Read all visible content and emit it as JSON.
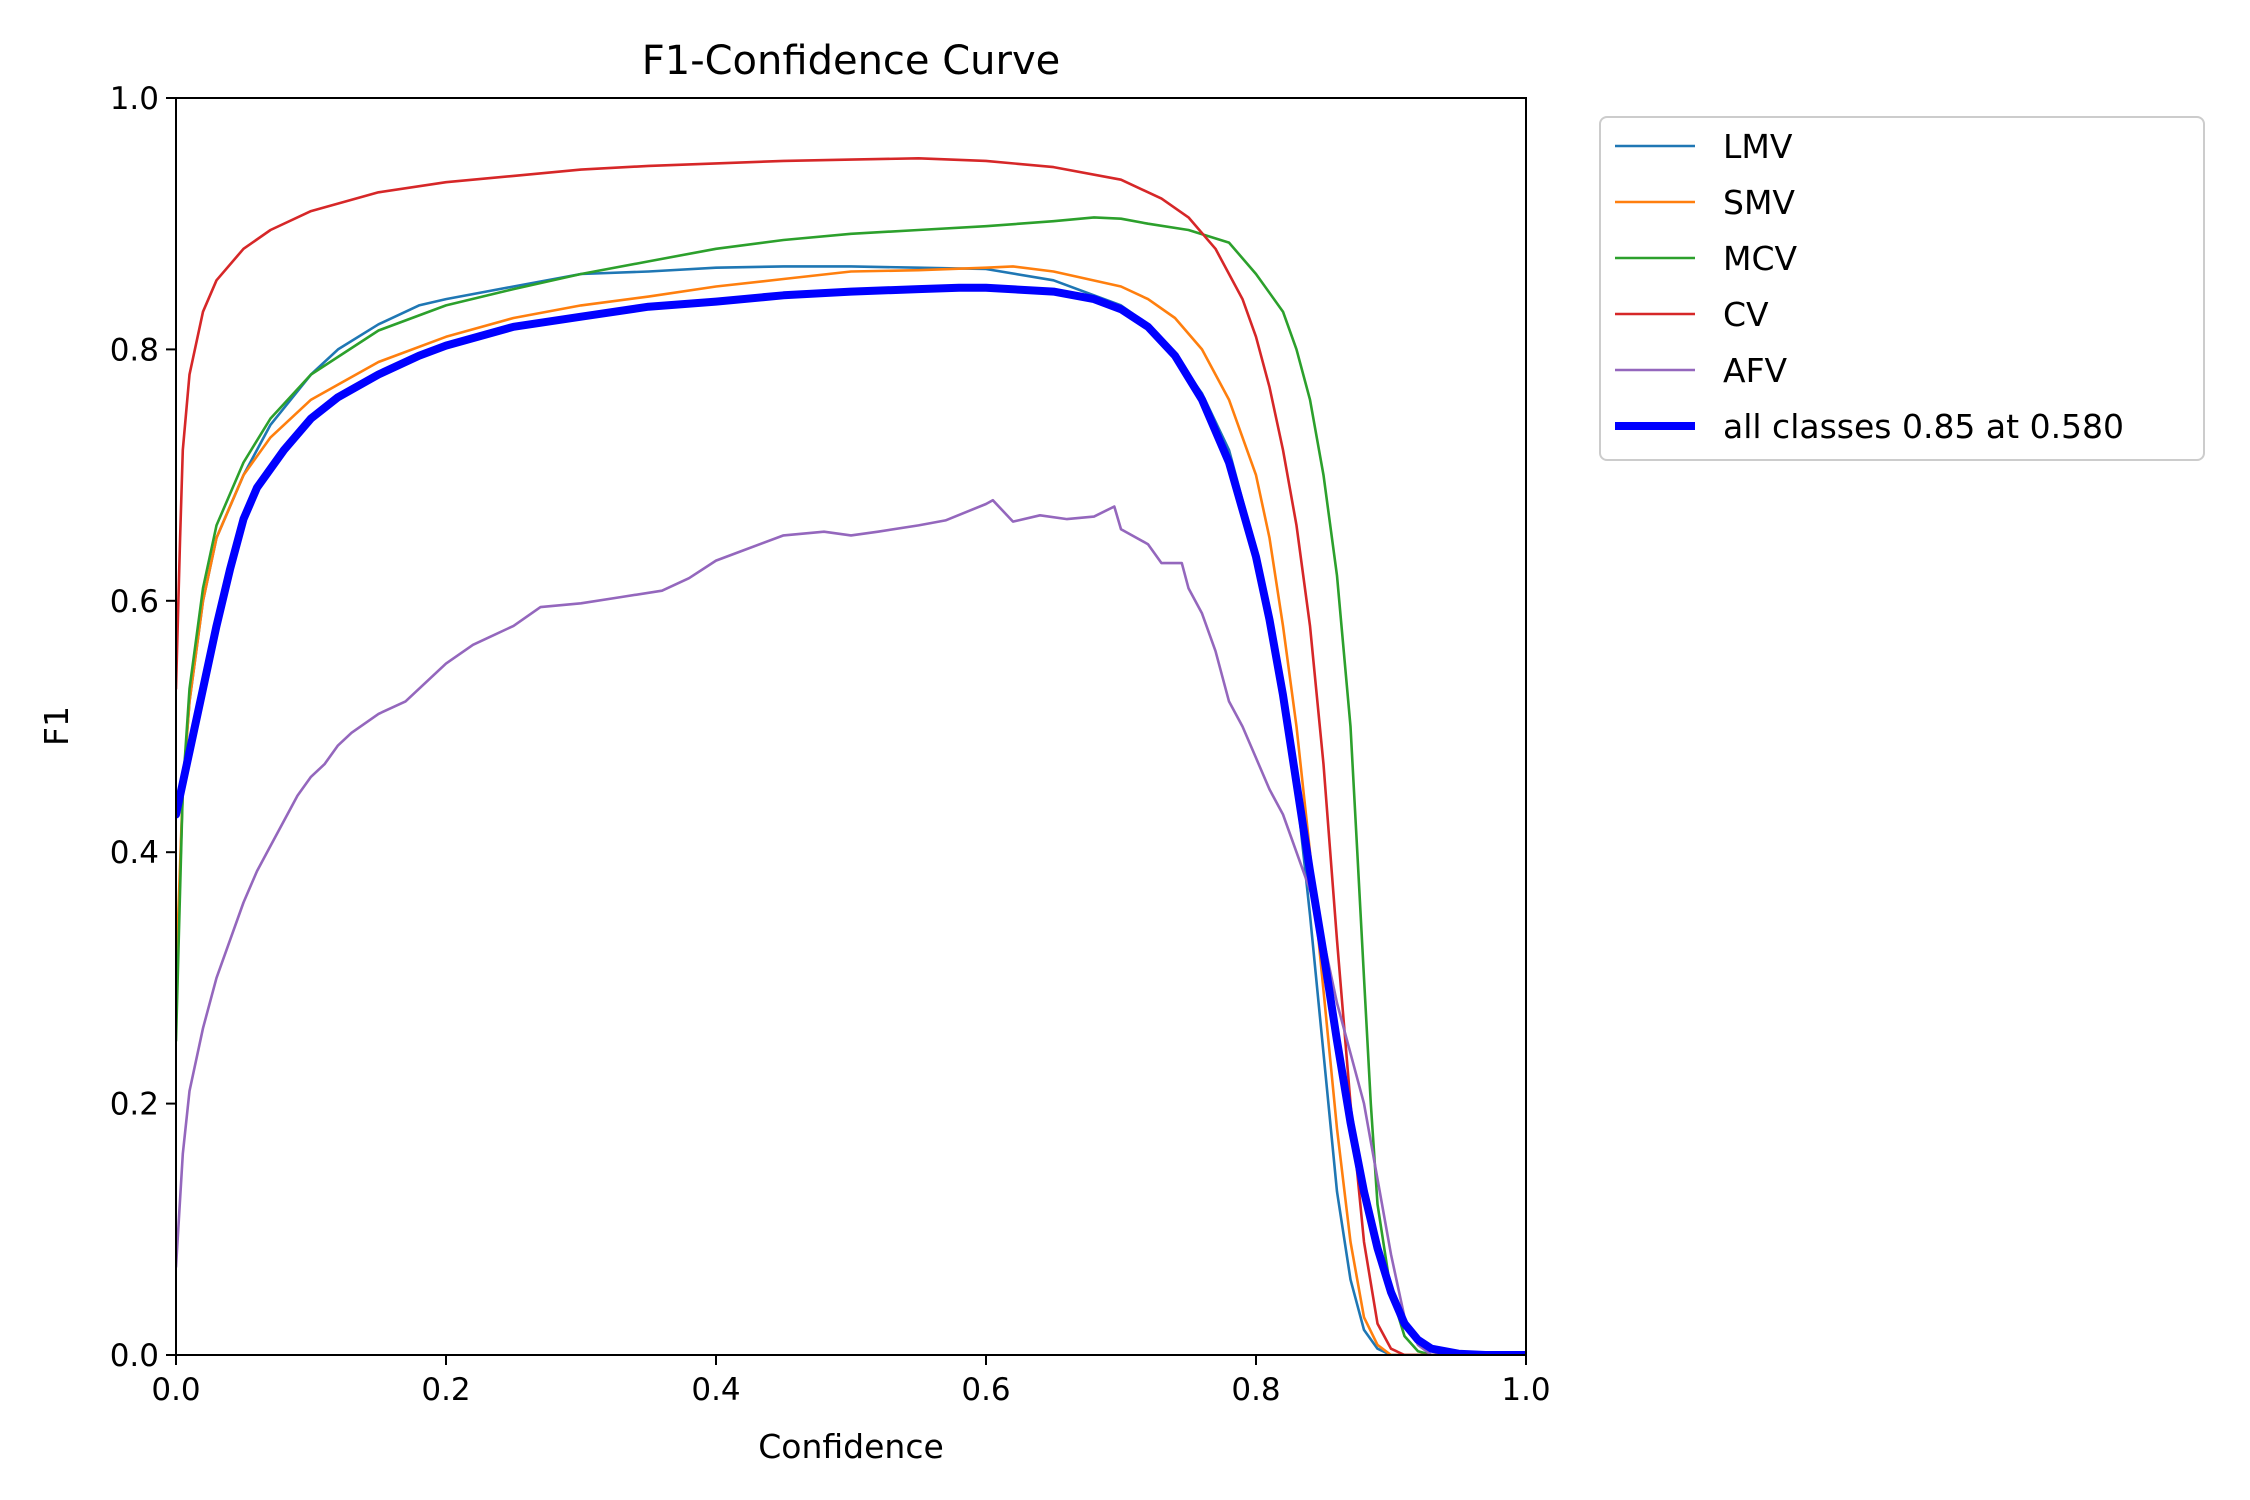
{
  "chart_data": {
    "type": "line",
    "title": "F1-Confidence Curve",
    "xlabel": "Confidence",
    "ylabel": "F1",
    "xlim": [
      0.0,
      1.0
    ],
    "ylim": [
      0.0,
      1.0
    ],
    "xticks": [
      "0.0",
      "0.2",
      "0.4",
      "0.6",
      "0.8",
      "1.0"
    ],
    "yticks": [
      "0.0",
      "0.2",
      "0.4",
      "0.6",
      "0.8",
      "1.0"
    ],
    "grid": false,
    "legend_position": "outside-top-right",
    "series": [
      {
        "name": "LMV",
        "color": "#1f77b4",
        "width": "thin",
        "points": [
          [
            0.0,
            0.28
          ],
          [
            0.005,
            0.45
          ],
          [
            0.01,
            0.52
          ],
          [
            0.02,
            0.6
          ],
          [
            0.03,
            0.65
          ],
          [
            0.05,
            0.7
          ],
          [
            0.07,
            0.74
          ],
          [
            0.1,
            0.78
          ],
          [
            0.12,
            0.8
          ],
          [
            0.15,
            0.82
          ],
          [
            0.18,
            0.835
          ],
          [
            0.2,
            0.84
          ],
          [
            0.25,
            0.85
          ],
          [
            0.3,
            0.86
          ],
          [
            0.35,
            0.862
          ],
          [
            0.4,
            0.865
          ],
          [
            0.45,
            0.866
          ],
          [
            0.5,
            0.866
          ],
          [
            0.55,
            0.865
          ],
          [
            0.6,
            0.864
          ],
          [
            0.65,
            0.855
          ],
          [
            0.7,
            0.835
          ],
          [
            0.72,
            0.82
          ],
          [
            0.74,
            0.795
          ],
          [
            0.76,
            0.765
          ],
          [
            0.78,
            0.72
          ],
          [
            0.8,
            0.64
          ],
          [
            0.81,
            0.59
          ],
          [
            0.82,
            0.52
          ],
          [
            0.83,
            0.45
          ],
          [
            0.84,
            0.35
          ],
          [
            0.85,
            0.24
          ],
          [
            0.86,
            0.13
          ],
          [
            0.87,
            0.06
          ],
          [
            0.88,
            0.02
          ],
          [
            0.89,
            0.005
          ],
          [
            0.9,
            0.0
          ],
          [
            1.0,
            0.0
          ]
        ]
      },
      {
        "name": "SMV",
        "color": "#ff7f0e",
        "width": "thin",
        "points": [
          [
            0.0,
            0.3
          ],
          [
            0.005,
            0.45
          ],
          [
            0.01,
            0.52
          ],
          [
            0.02,
            0.6
          ],
          [
            0.03,
            0.65
          ],
          [
            0.05,
            0.7
          ],
          [
            0.07,
            0.73
          ],
          [
            0.1,
            0.76
          ],
          [
            0.15,
            0.79
          ],
          [
            0.2,
            0.81
          ],
          [
            0.25,
            0.825
          ],
          [
            0.3,
            0.835
          ],
          [
            0.35,
            0.842
          ],
          [
            0.4,
            0.85
          ],
          [
            0.45,
            0.856
          ],
          [
            0.5,
            0.862
          ],
          [
            0.55,
            0.863
          ],
          [
            0.6,
            0.865
          ],
          [
            0.62,
            0.866
          ],
          [
            0.65,
            0.862
          ],
          [
            0.7,
            0.85
          ],
          [
            0.72,
            0.84
          ],
          [
            0.74,
            0.825
          ],
          [
            0.76,
            0.8
          ],
          [
            0.78,
            0.76
          ],
          [
            0.8,
            0.7
          ],
          [
            0.81,
            0.65
          ],
          [
            0.82,
            0.58
          ],
          [
            0.83,
            0.5
          ],
          [
            0.84,
            0.4
          ],
          [
            0.85,
            0.29
          ],
          [
            0.86,
            0.18
          ],
          [
            0.87,
            0.09
          ],
          [
            0.88,
            0.03
          ],
          [
            0.89,
            0.008
          ],
          [
            0.9,
            0.0
          ],
          [
            1.0,
            0.0
          ]
        ]
      },
      {
        "name": "MCV",
        "color": "#2ca02c",
        "width": "thin",
        "points": [
          [
            0.0,
            0.25
          ],
          [
            0.005,
            0.45
          ],
          [
            0.01,
            0.53
          ],
          [
            0.02,
            0.61
          ],
          [
            0.03,
            0.66
          ],
          [
            0.05,
            0.71
          ],
          [
            0.07,
            0.745
          ],
          [
            0.1,
            0.78
          ],
          [
            0.15,
            0.815
          ],
          [
            0.2,
            0.835
          ],
          [
            0.25,
            0.848
          ],
          [
            0.3,
            0.86
          ],
          [
            0.35,
            0.87
          ],
          [
            0.4,
            0.88
          ],
          [
            0.45,
            0.887
          ],
          [
            0.5,
            0.892
          ],
          [
            0.55,
            0.895
          ],
          [
            0.6,
            0.898
          ],
          [
            0.65,
            0.902
          ],
          [
            0.68,
            0.905
          ],
          [
            0.7,
            0.904
          ],
          [
            0.72,
            0.9
          ],
          [
            0.75,
            0.895
          ],
          [
            0.78,
            0.885
          ],
          [
            0.8,
            0.86
          ],
          [
            0.82,
            0.83
          ],
          [
            0.83,
            0.8
          ],
          [
            0.84,
            0.76
          ],
          [
            0.85,
            0.7
          ],
          [
            0.86,
            0.62
          ],
          [
            0.87,
            0.5
          ],
          [
            0.875,
            0.4
          ],
          [
            0.88,
            0.3
          ],
          [
            0.885,
            0.2
          ],
          [
            0.89,
            0.12
          ],
          [
            0.9,
            0.05
          ],
          [
            0.91,
            0.015
          ],
          [
            0.92,
            0.003
          ],
          [
            0.93,
            0.0
          ],
          [
            1.0,
            0.0
          ]
        ]
      },
      {
        "name": "CV",
        "color": "#d62728",
        "width": "thin",
        "points": [
          [
            0.0,
            0.53
          ],
          [
            0.003,
            0.65
          ],
          [
            0.005,
            0.72
          ],
          [
            0.01,
            0.78
          ],
          [
            0.02,
            0.83
          ],
          [
            0.03,
            0.855
          ],
          [
            0.05,
            0.88
          ],
          [
            0.07,
            0.895
          ],
          [
            0.1,
            0.91
          ],
          [
            0.15,
            0.925
          ],
          [
            0.2,
            0.933
          ],
          [
            0.25,
            0.938
          ],
          [
            0.3,
            0.943
          ],
          [
            0.35,
            0.946
          ],
          [
            0.4,
            0.948
          ],
          [
            0.45,
            0.95
          ],
          [
            0.5,
            0.951
          ],
          [
            0.55,
            0.952
          ],
          [
            0.6,
            0.95
          ],
          [
            0.65,
            0.945
          ],
          [
            0.7,
            0.935
          ],
          [
            0.73,
            0.92
          ],
          [
            0.75,
            0.905
          ],
          [
            0.77,
            0.88
          ],
          [
            0.79,
            0.84
          ],
          [
            0.8,
            0.81
          ],
          [
            0.81,
            0.77
          ],
          [
            0.82,
            0.72
          ],
          [
            0.83,
            0.66
          ],
          [
            0.84,
            0.58
          ],
          [
            0.85,
            0.47
          ],
          [
            0.86,
            0.33
          ],
          [
            0.87,
            0.2
          ],
          [
            0.88,
            0.09
          ],
          [
            0.89,
            0.025
          ],
          [
            0.9,
            0.005
          ],
          [
            0.91,
            0.0
          ],
          [
            1.0,
            0.0
          ]
        ]
      },
      {
        "name": "AFV",
        "color": "#9467bd",
        "width": "thin",
        "points": [
          [
            0.0,
            0.07
          ],
          [
            0.005,
            0.16
          ],
          [
            0.01,
            0.21
          ],
          [
            0.02,
            0.26
          ],
          [
            0.03,
            0.3
          ],
          [
            0.04,
            0.33
          ],
          [
            0.05,
            0.36
          ],
          [
            0.06,
            0.385
          ],
          [
            0.07,
            0.405
          ],
          [
            0.08,
            0.425
          ],
          [
            0.09,
            0.445
          ],
          [
            0.1,
            0.46
          ],
          [
            0.11,
            0.47
          ],
          [
            0.12,
            0.485
          ],
          [
            0.13,
            0.495
          ],
          [
            0.15,
            0.51
          ],
          [
            0.17,
            0.52
          ],
          [
            0.19,
            0.54
          ],
          [
            0.2,
            0.55
          ],
          [
            0.22,
            0.565
          ],
          [
            0.25,
            0.58
          ],
          [
            0.27,
            0.595
          ],
          [
            0.3,
            0.598
          ],
          [
            0.33,
            0.603
          ],
          [
            0.36,
            0.608
          ],
          [
            0.38,
            0.618
          ],
          [
            0.4,
            0.632
          ],
          [
            0.42,
            0.64
          ],
          [
            0.45,
            0.652
          ],
          [
            0.48,
            0.655
          ],
          [
            0.5,
            0.652
          ],
          [
            0.52,
            0.655
          ],
          [
            0.55,
            0.66
          ],
          [
            0.57,
            0.664
          ],
          [
            0.6,
            0.677
          ],
          [
            0.605,
            0.68
          ],
          [
            0.62,
            0.663
          ],
          [
            0.64,
            0.668
          ],
          [
            0.66,
            0.665
          ],
          [
            0.68,
            0.667
          ],
          [
            0.695,
            0.675
          ],
          [
            0.7,
            0.657
          ],
          [
            0.72,
            0.645
          ],
          [
            0.73,
            0.63
          ],
          [
            0.745,
            0.63
          ],
          [
            0.75,
            0.61
          ],
          [
            0.76,
            0.59
          ],
          [
            0.77,
            0.56
          ],
          [
            0.78,
            0.52
          ],
          [
            0.79,
            0.5
          ],
          [
            0.8,
            0.475
          ],
          [
            0.81,
            0.45
          ],
          [
            0.82,
            0.43
          ],
          [
            0.83,
            0.4
          ],
          [
            0.84,
            0.37
          ],
          [
            0.85,
            0.33
          ],
          [
            0.86,
            0.28
          ],
          [
            0.87,
            0.24
          ],
          [
            0.88,
            0.2
          ],
          [
            0.89,
            0.14
          ],
          [
            0.9,
            0.08
          ],
          [
            0.91,
            0.03
          ],
          [
            0.92,
            0.008
          ],
          [
            0.93,
            0.0
          ],
          [
            1.0,
            0.0
          ]
        ]
      },
      {
        "name": "all classes 0.85 at 0.580",
        "color": "#0000ff",
        "width": "thick",
        "points": [
          [
            0.0,
            0.43
          ],
          [
            0.01,
            0.48
          ],
          [
            0.02,
            0.53
          ],
          [
            0.03,
            0.58
          ],
          [
            0.04,
            0.625
          ],
          [
            0.05,
            0.665
          ],
          [
            0.06,
            0.69
          ],
          [
            0.08,
            0.72
          ],
          [
            0.1,
            0.745
          ],
          [
            0.12,
            0.762
          ],
          [
            0.15,
            0.78
          ],
          [
            0.18,
            0.795
          ],
          [
            0.2,
            0.803
          ],
          [
            0.25,
            0.818
          ],
          [
            0.3,
            0.826
          ],
          [
            0.35,
            0.834
          ],
          [
            0.4,
            0.838
          ],
          [
            0.45,
            0.843
          ],
          [
            0.5,
            0.846
          ],
          [
            0.55,
            0.848
          ],
          [
            0.58,
            0.849
          ],
          [
            0.6,
            0.849
          ],
          [
            0.65,
            0.846
          ],
          [
            0.68,
            0.84
          ],
          [
            0.7,
            0.832
          ],
          [
            0.72,
            0.818
          ],
          [
            0.74,
            0.795
          ],
          [
            0.76,
            0.76
          ],
          [
            0.78,
            0.71
          ],
          [
            0.8,
            0.635
          ],
          [
            0.81,
            0.585
          ],
          [
            0.82,
            0.525
          ],
          [
            0.83,
            0.455
          ],
          [
            0.84,
            0.385
          ],
          [
            0.85,
            0.32
          ],
          [
            0.86,
            0.25
          ],
          [
            0.87,
            0.185
          ],
          [
            0.88,
            0.13
          ],
          [
            0.89,
            0.085
          ],
          [
            0.9,
            0.05
          ],
          [
            0.91,
            0.025
          ],
          [
            0.92,
            0.012
          ],
          [
            0.93,
            0.005
          ],
          [
            0.95,
            0.001
          ],
          [
            0.97,
            0.0
          ],
          [
            1.0,
            0.0
          ]
        ]
      }
    ]
  }
}
